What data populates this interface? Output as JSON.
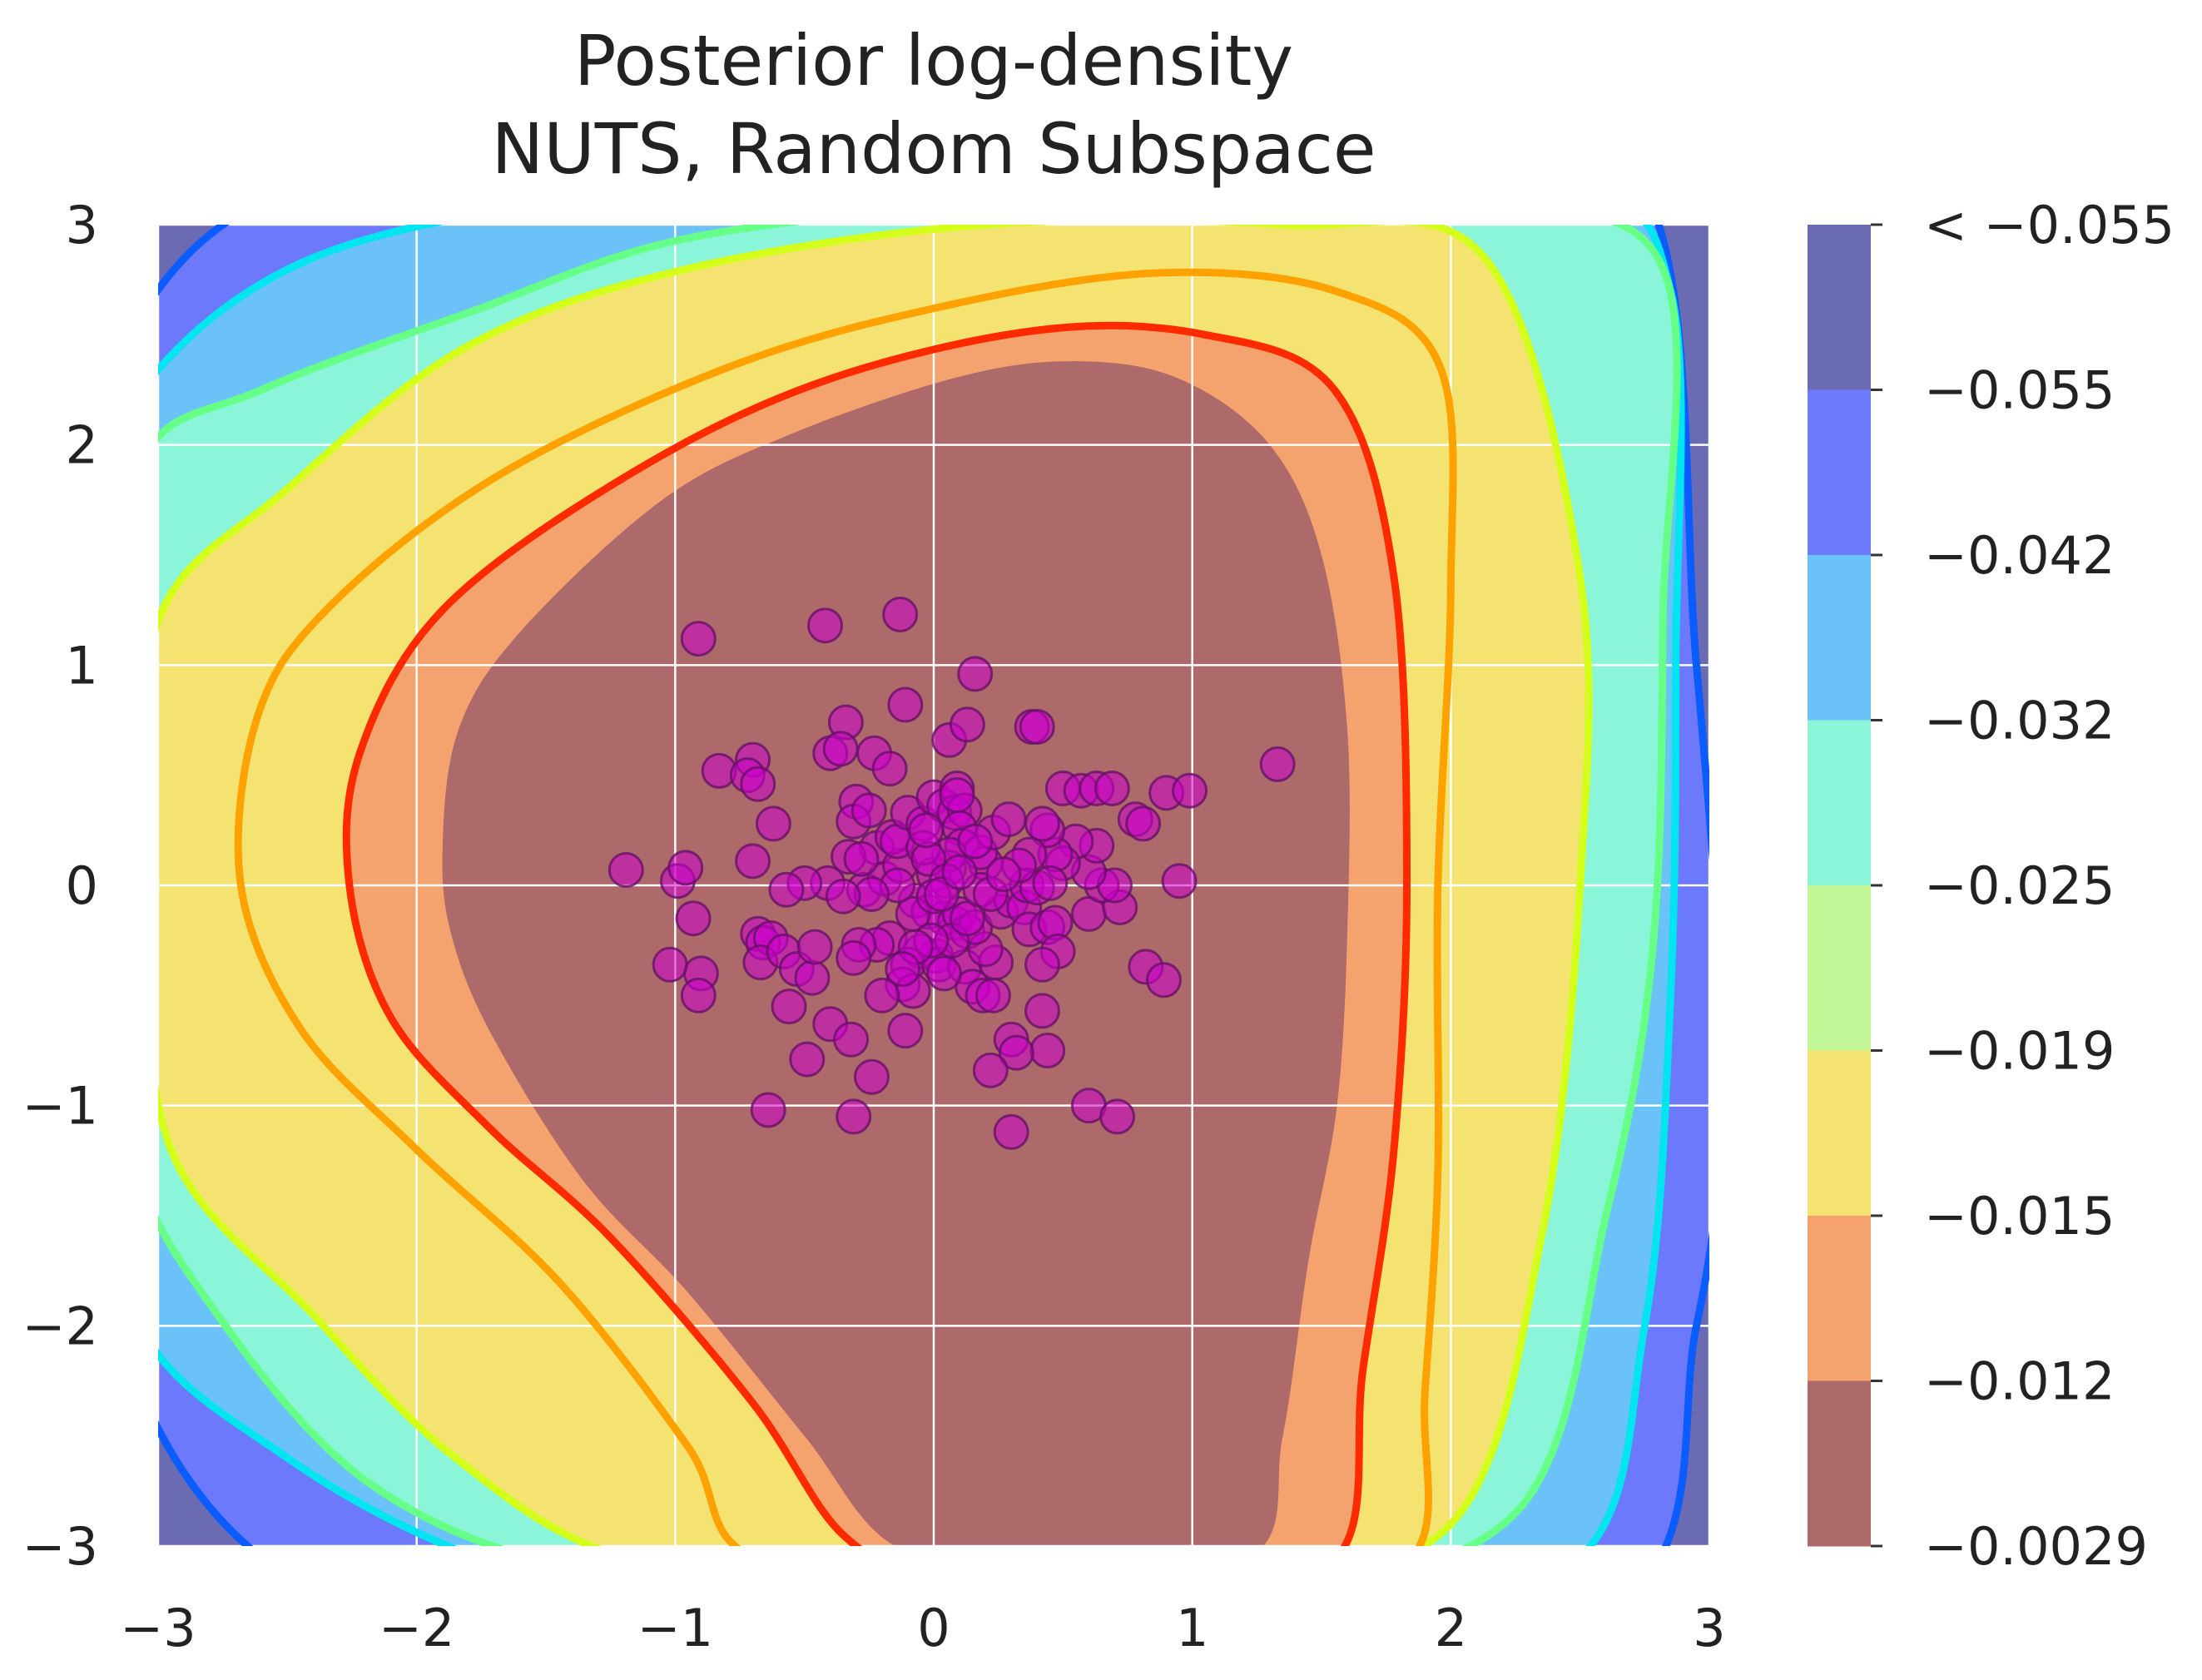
{
  "chart_data": {
    "type": "contour",
    "title": [
      "Posterior log-density",
      "NUTS, Random Subspace"
    ],
    "xlim": [
      -3,
      3
    ],
    "ylim": [
      -3,
      3
    ],
    "x_ticks": [
      {
        "value": -3,
        "label": "−3"
      },
      {
        "value": -2,
        "label": "−2"
      },
      {
        "value": -1,
        "label": "−1"
      },
      {
        "value": 0,
        "label": "0"
      },
      {
        "value": 1,
        "label": "1"
      },
      {
        "value": 2,
        "label": "2"
      },
      {
        "value": 3,
        "label": "3"
      }
    ],
    "y_ticks": [
      {
        "value": -3,
        "label": "−3"
      },
      {
        "value": -2,
        "label": "−2"
      },
      {
        "value": -1,
        "label": "−1"
      },
      {
        "value": 0,
        "label": "0"
      },
      {
        "value": 1,
        "label": "1"
      },
      {
        "value": 2,
        "label": "2"
      },
      {
        "value": 3,
        "label": "3"
      }
    ],
    "grid": true,
    "colorbar": {
      "tick_labels": [
        "< −0.055",
        "−0.055",
        "−0.042",
        "−0.032",
        "−0.025",
        "−0.019",
        "−0.015",
        "−0.012",
        "−0.0029"
      ],
      "band_colors": [
        "#6b6bb3",
        "#6b79fa",
        "#6bc2f8",
        "#8af5d9",
        "#c2f596",
        "#f5e371",
        "#f4a26e",
        "#ae696b"
      ]
    },
    "contour_line_colors": [
      "#0b5cff",
      "#00e5f0",
      "#66ff88",
      "#d4ff1a",
      "#ffa200",
      "#ff2a00"
    ],
    "samples": {
      "color": "#cc00cc",
      "edge_color": "#661166",
      "points": [
        [
          -1.19,
          0.07
        ],
        [
          -0.99,
          0.02
        ],
        [
          -0.96,
          0.08
        ],
        [
          -0.93,
          -0.15
        ],
        [
          -0.9,
          -0.4
        ],
        [
          -0.91,
          -0.5
        ],
        [
          -1.02,
          -0.36
        ],
        [
          -0.83,
          0.52
        ],
        [
          -0.7,
          0.57
        ],
        [
          -0.72,
          0.5
        ],
        [
          -0.68,
          0.46
        ],
        [
          -0.62,
          0.28
        ],
        [
          -0.7,
          0.11
        ],
        [
          -0.68,
          -0.22
        ],
        [
          -0.66,
          -0.26
        ],
        [
          -0.63,
          -0.24
        ],
        [
          -0.67,
          -0.35
        ],
        [
          -0.58,
          -0.3
        ],
        [
          -0.53,
          -0.38
        ],
        [
          -0.47,
          -0.42
        ],
        [
          -0.56,
          -0.55
        ],
        [
          -0.49,
          -0.79
        ],
        [
          -0.64,
          -1.02
        ],
        [
          -0.4,
          -0.63
        ],
        [
          -0.32,
          -0.7
        ],
        [
          -0.24,
          -0.87
        ],
        [
          -0.31,
          -1.05
        ],
        [
          -0.11,
          -0.66
        ],
        [
          -0.34,
          0.74
        ],
        [
          -0.4,
          0.6
        ],
        [
          -0.36,
          0.62
        ],
        [
          -0.23,
          0.6
        ],
        [
          -0.17,
          0.53
        ],
        [
          -0.3,
          0.38
        ],
        [
          -0.31,
          0.29
        ],
        [
          -0.22,
          0.17
        ],
        [
          -0.33,
          0.13
        ],
        [
          -0.41,
          0.01
        ],
        [
          -0.5,
          0.01
        ],
        [
          -0.57,
          -0.02
        ],
        [
          -0.27,
          -0.02
        ],
        [
          -0.19,
          0.03
        ],
        [
          -0.13,
          0.09
        ],
        [
          -0.16,
          0.22
        ],
        [
          -0.14,
          0.2
        ],
        [
          -0.1,
          0.33
        ],
        [
          -0.04,
          0.28
        ],
        [
          0.0,
          0.4
        ],
        [
          0.04,
          0.36
        ],
        [
          0.09,
          0.44
        ],
        [
          0.08,
          0.33
        ],
        [
          0.12,
          0.34
        ],
        [
          0.1,
          0.26
        ],
        [
          0.11,
          0.18
        ],
        [
          0.2,
          0.1
        ],
        [
          0.18,
          0.15
        ],
        [
          0.23,
          0.24
        ],
        [
          0.06,
          0.08
        ],
        [
          0.0,
          0.05
        ],
        [
          -0.07,
          -0.07
        ],
        [
          -0.02,
          -0.12
        ],
        [
          0.04,
          -0.15
        ],
        [
          0.08,
          -0.17
        ],
        [
          0.1,
          -0.13
        ],
        [
          0.13,
          -0.21
        ],
        [
          0.01,
          -0.32
        ],
        [
          -0.05,
          -0.3
        ],
        [
          -0.1,
          -0.36
        ],
        [
          -0.12,
          -0.45
        ],
        [
          -0.08,
          -0.48
        ],
        [
          -0.17,
          -0.24
        ],
        [
          -0.22,
          -0.27
        ],
        [
          -0.29,
          -0.27
        ],
        [
          -0.31,
          -0.33
        ],
        [
          -0.2,
          -0.5
        ],
        [
          0.02,
          -0.36
        ],
        [
          0.12,
          -0.37
        ],
        [
          0.15,
          -0.46
        ],
        [
          0.19,
          -0.5
        ],
        [
          0.23,
          -0.5
        ],
        [
          0.24,
          -0.35
        ],
        [
          0.2,
          -0.29
        ],
        [
          0.16,
          -0.19
        ],
        [
          0.26,
          -0.12
        ],
        [
          0.3,
          -0.07
        ],
        [
          0.35,
          -0.1
        ],
        [
          0.37,
          -0.2
        ],
        [
          0.44,
          -0.19
        ],
        [
          0.47,
          -0.17
        ],
        [
          0.48,
          -0.3
        ],
        [
          0.42,
          -0.36
        ],
        [
          0.42,
          -0.57
        ],
        [
          0.44,
          -0.75
        ],
        [
          0.3,
          -0.7
        ],
        [
          0.32,
          -0.76
        ],
        [
          0.22,
          -0.84
        ],
        [
          0.3,
          -1.12
        ],
        [
          0.6,
          -1.0
        ],
        [
          0.71,
          -1.05
        ],
        [
          0.6,
          -0.13
        ],
        [
          0.72,
          -0.1
        ],
        [
          0.65,
          0.0
        ],
        [
          0.7,
          0.0
        ],
        [
          0.6,
          0.06
        ],
        [
          0.63,
          0.18
        ],
        [
          0.55,
          0.2
        ],
        [
          0.5,
          0.1
        ],
        [
          0.47,
          0.14
        ],
        [
          0.44,
          0.25
        ],
        [
          0.42,
          0.28
        ],
        [
          0.37,
          0.14
        ],
        [
          0.36,
          0.0
        ],
        [
          0.4,
          -0.01
        ],
        [
          0.45,
          0.01
        ],
        [
          0.5,
          0.44
        ],
        [
          0.57,
          0.43
        ],
        [
          0.63,
          0.44
        ],
        [
          0.69,
          0.44
        ],
        [
          0.78,
          0.3
        ],
        [
          0.81,
          0.28
        ],
        [
          0.9,
          0.42
        ],
        [
          0.99,
          0.43
        ],
        [
          1.33,
          0.55
        ],
        [
          0.95,
          0.02
        ],
        [
          0.82,
          -0.37
        ],
        [
          0.89,
          -0.43
        ],
        [
          0.38,
          0.72
        ],
        [
          0.4,
          0.72
        ],
        [
          0.29,
          0.3
        ],
        [
          0.33,
          0.09
        ],
        [
          0.06,
          0.14
        ],
        [
          -0.04,
          0.17
        ],
        [
          -0.08,
          -0.13
        ],
        [
          0.16,
          0.96
        ],
        [
          -0.13,
          1.23
        ],
        [
          -0.42,
          1.18
        ],
        [
          -0.91,
          1.12
        ],
        [
          -0.11,
          0.82
        ],
        [
          0.06,
          0.66
        ],
        [
          0.13,
          0.73
        ],
        [
          -0.02,
          0.12
        ],
        [
          0.07,
          -0.25
        ],
        [
          -0.01,
          -0.25
        ],
        [
          0.04,
          -0.4
        ],
        [
          0.13,
          -0.15
        ],
        [
          0.05,
          0.02
        ],
        [
          -0.14,
          0.0
        ],
        [
          0.0,
          -0.05
        ],
        [
          0.03,
          -0.04
        ],
        [
          -0.07,
          -0.28
        ],
        [
          -0.24,
          -0.04
        ],
        [
          -0.28,
          0.12
        ],
        [
          -0.25,
          0.34
        ],
        [
          0.18,
          -0.02
        ],
        [
          0.22,
          -0.04
        ],
        [
          0.27,
          0.05
        ],
        [
          0.1,
          0.06
        ],
        [
          -0.03,
          0.25
        ],
        [
          0.16,
          0.2
        ],
        [
          0.09,
          0.41
        ],
        [
          -0.12,
          -0.38
        ],
        [
          -0.35,
          -0.05
        ],
        [
          -0.46,
          -0.28
        ]
      ]
    }
  }
}
